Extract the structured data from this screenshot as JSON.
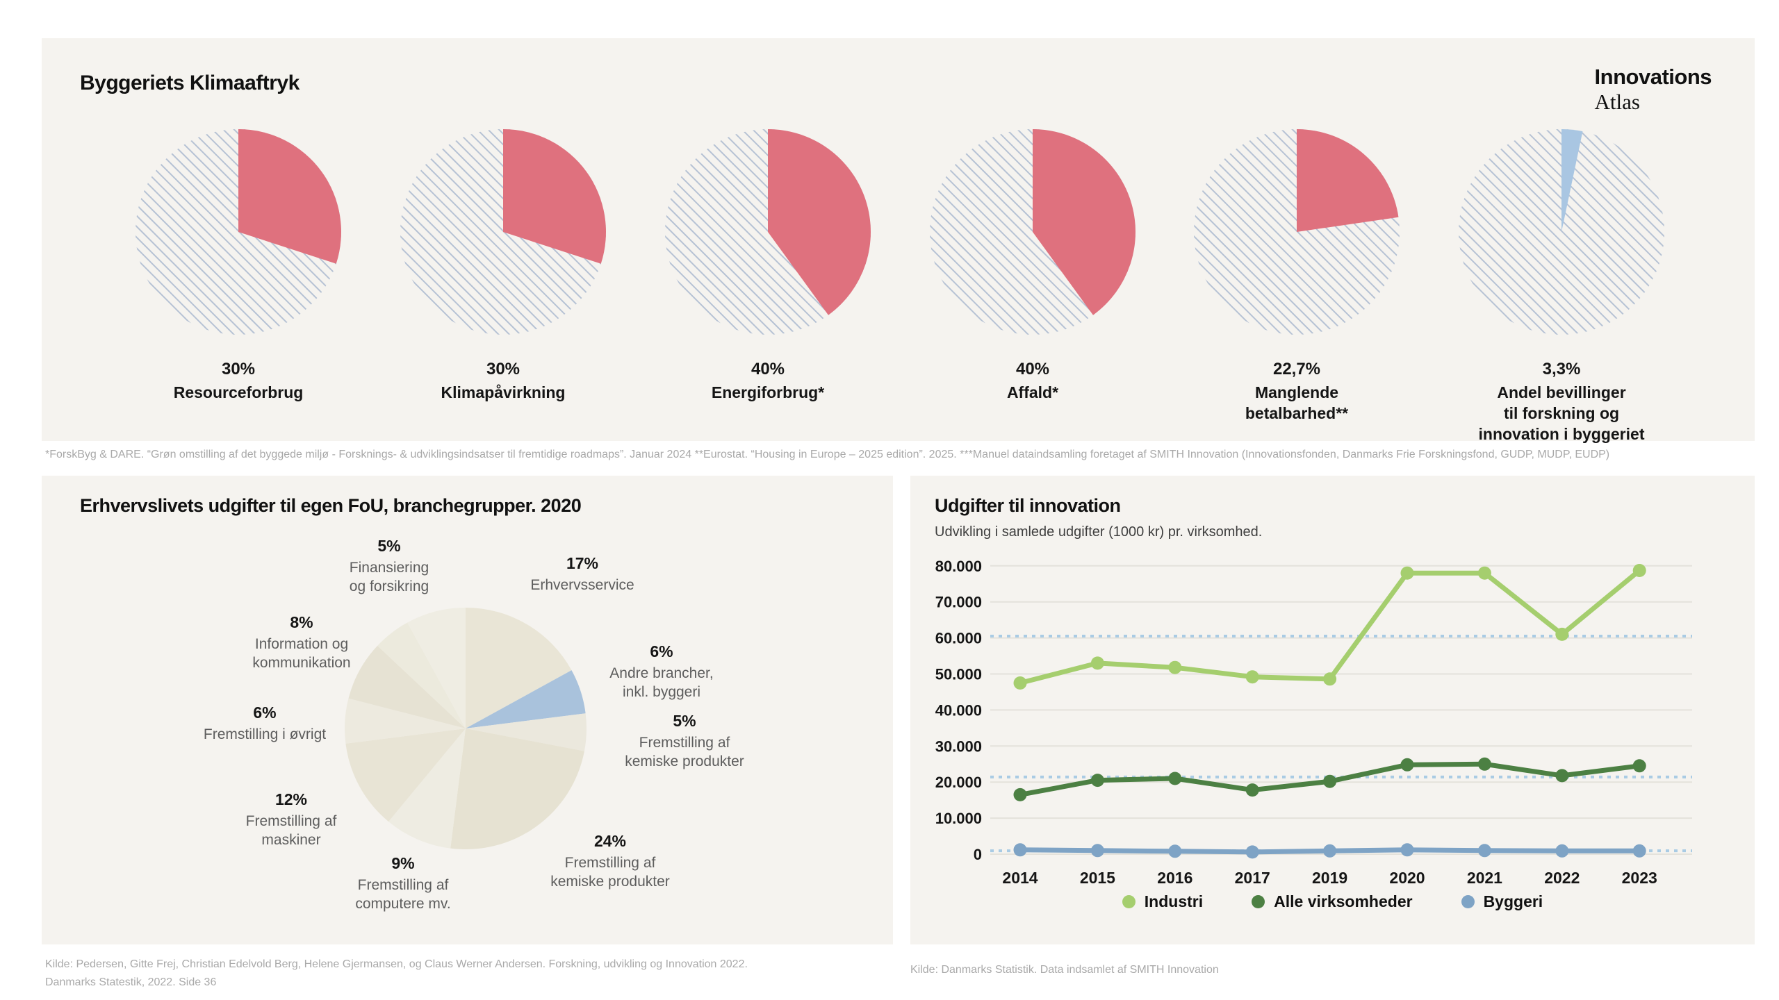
{
  "page": {
    "background": "#ffffff",
    "panel_background": "#f5f3ef",
    "hatch_color": "#b6c2d4",
    "accent_red": "#df717e",
    "accent_blue": "#a9c6e2"
  },
  "brand": {
    "line1": "Innovations",
    "line2": "Atlas"
  },
  "climate_panel": {
    "title": "Byggeriets Klimaaftryk",
    "footnote": "*ForskByg & DARE. “Grøn omstilling af det byggede miljø - Forsknings- & udviklingsindsatser til fremtidige roadmaps”. Januar 2024 **Eurostat. “Housing in Europe – 2025 edition”. 2025. ***Manuel dataindsamling foretaget af SMITH Innovation (Innovationsfonden, Danmarks Frie Forskningsfond, GUDP, MUDP, EUDP)"
  },
  "fou_panel": {
    "title": "Erhvervslivets udgifter til egen FoU, branchegrupper. 2020",
    "source_line1": "Kilde: Pedersen, Gitte Frej, Christian Edelvold Berg, Helene Gjermansen, og Claus Werner Andersen. Forskning, udvikling og Innovation 2022.",
    "source_line2": "Danmarks Statestik, 2022. Side 36"
  },
  "innovation_panel": {
    "title": "Udgifter til innovation",
    "subtitle": "Udvikling i samlede udgifter (1000 kr) pr. virksomhed.",
    "source": "Kilde: Danmarks Statistik. Data indsamlet af SMITH Innovation"
  },
  "chart_data": [
    {
      "type": "pie",
      "title": "Byggeriets Klimaaftryk",
      "layout": "six individual share pies, remainder hatched",
      "slices": [
        {
          "value_label": "30%",
          "label_lines": [
            "Resourceforbrug"
          ],
          "value": 30,
          "fill": "#df717e"
        },
        {
          "value_label": "30%",
          "label_lines": [
            "Klimapåvirkning"
          ],
          "value": 30,
          "fill": "#df717e"
        },
        {
          "value_label": "40%",
          "label_lines": [
            "Energiforbrug*"
          ],
          "value": 40,
          "fill": "#df717e"
        },
        {
          "value_label": "40%",
          "label_lines": [
            "Affald*"
          ],
          "value": 40,
          "fill": "#df717e"
        },
        {
          "value_label": "22,7%",
          "label_lines": [
            "Manglende",
            "betalbarhed**"
          ],
          "value": 22.7,
          "fill": "#df717e"
        },
        {
          "value_label": "3,3%",
          "label_lines": [
            "Andel bevillinger",
            "til forskning og",
            "innovation i byggeriet"
          ],
          "value": 3.3,
          "fill": "#a9c6e2"
        }
      ]
    },
    {
      "type": "pie",
      "title": "Erhvervslivets udgifter til egen FoU, branchegrupper. 2020",
      "slices": [
        {
          "value_label": "17%",
          "label_lines": [
            "Erhvervsservice"
          ],
          "value": 17,
          "fill": "#e9e5d6"
        },
        {
          "value_label": "6%",
          "label_lines": [
            "Andre brancher,",
            "inkl. byggeri"
          ],
          "value": 6,
          "fill": "#a9c2dc"
        },
        {
          "value_label": "5%",
          "label_lines": [
            "Fremstilling af",
            "kemiske produkter"
          ],
          "value": 5,
          "fill": "#ebe8dd"
        },
        {
          "value_label": "24%",
          "label_lines": [
            "Fremstilling af",
            "kemiske produkter"
          ],
          "value": 24,
          "fill": "#e6e2d2"
        },
        {
          "value_label": "9%",
          "label_lines": [
            "Fremstilling af",
            "computere mv."
          ],
          "value": 9,
          "fill": "#eeece2"
        },
        {
          "value_label": "12%",
          "label_lines": [
            "Fremstilling af",
            "maskiner"
          ],
          "value": 12,
          "fill": "#e8e4d5"
        },
        {
          "value_label": "6%",
          "label_lines": [
            "Fremstilling i øvrigt"
          ],
          "value": 6,
          "fill": "#edeadf"
        },
        {
          "value_label": "8%",
          "label_lines": [
            "Information og",
            "kommunikation"
          ],
          "value": 8,
          "fill": "#e6e2d3"
        },
        {
          "value_label": "5%",
          "label_lines": [
            "Finansiering",
            "og forsikring"
          ],
          "value": 5,
          "fill": "#eceadd"
        }
      ],
      "unlabeled_remainder": {
        "value": 8,
        "fill": "#efede3"
      }
    },
    {
      "type": "line",
      "title": "Udgifter til innovation",
      "subtitle": "Udvikling i samlede udgifter (1000 kr) pr. virksomhed.",
      "x": [
        "2014",
        "2015",
        "2016",
        "2017",
        "2019",
        "2020",
        "2021",
        "2022",
        "2023"
      ],
      "series": [
        {
          "name": "Industri",
          "color": "#a5ce6e",
          "values": [
            47500,
            53000,
            51800,
            49200,
            48600,
            78000,
            78000,
            61000,
            78700
          ]
        },
        {
          "name": "Alle virksomheder",
          "color": "#4c8043",
          "values": [
            16500,
            20500,
            21000,
            17800,
            20200,
            24800,
            25000,
            21800,
            24500
          ]
        },
        {
          "name": "Byggeri",
          "color": "#7ea3c5",
          "values": [
            1200,
            1000,
            800,
            600,
            900,
            1200,
            1000,
            900,
            900
          ]
        }
      ],
      "ylim": [
        0,
        80000
      ],
      "ytick_labels": [
        "0",
        "10.000",
        "20.000",
        "30.000",
        "40.000",
        "50.000",
        "60.000",
        "70.000",
        "80.000"
      ],
      "reference_lines": [
        {
          "value": 60500,
          "color": "#a9cbe4"
        },
        {
          "value": 21400,
          "color": "#a9cbe4"
        },
        {
          "value": 950,
          "color": "#a9cbe4"
        }
      ],
      "grid": "horizontal",
      "legend_position": "bottom"
    }
  ]
}
